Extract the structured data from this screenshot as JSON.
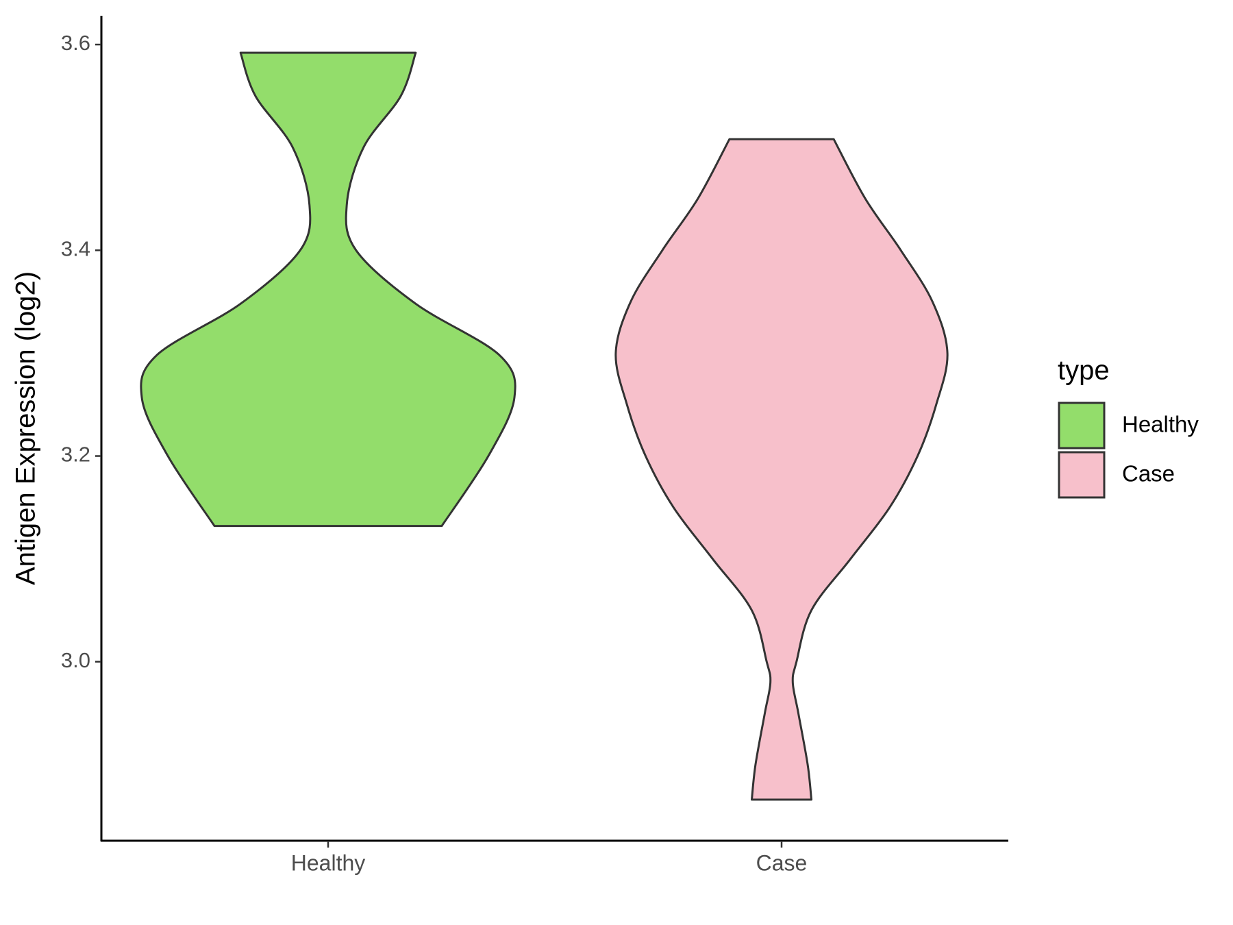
{
  "chart_data": {
    "type": "violin",
    "ylabel": "Antigen Expression (log2)",
    "categories": [
      "Healthy",
      "Case"
    ],
    "legend_title": "type",
    "series": [
      {
        "name": "Healthy",
        "color": "#93dd6b",
        "y": [
          3.132,
          3.2,
          3.257,
          3.298,
          3.348,
          3.4,
          3.444,
          3.5,
          3.55,
          3.592
        ],
        "widths": [
          0.61,
          0.86,
          1.0,
          0.92,
          0.47,
          0.15,
          0.1,
          0.19,
          0.39,
          0.47
        ]
      },
      {
        "name": "Case",
        "color": "#f7c0cb",
        "y": [
          2.866,
          2.9,
          2.95,
          2.98,
          3.0,
          3.05,
          3.1,
          3.15,
          3.2,
          3.25,
          3.3,
          3.35,
          3.4,
          3.45,
          3.508
        ],
        "widths": [
          0.16,
          0.14,
          0.09,
          0.06,
          0.08,
          0.16,
          0.37,
          0.58,
          0.73,
          0.83,
          0.89,
          0.81,
          0.64,
          0.45,
          0.28
        ]
      }
    ],
    "ylim": [
      2.826,
      3.628
    ],
    "yticks": [
      {
        "value": 3.0,
        "label": "3.0"
      },
      3.2,
      3.4,
      3.6
    ],
    "legend_position": "right"
  }
}
